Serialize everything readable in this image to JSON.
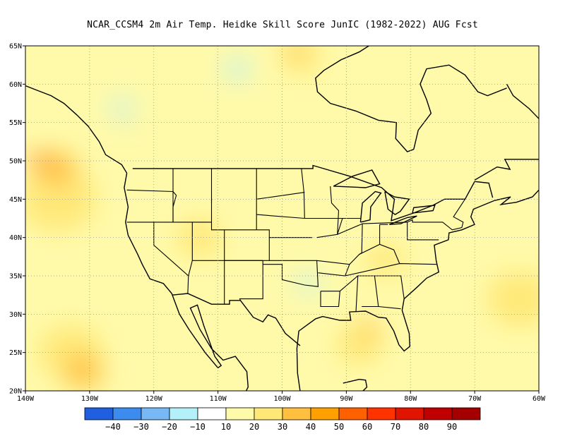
{
  "title": "NCAR_CCSM4  2m Air Temp. Heidke Skill Score JunIC (1982-2022) AUG Fcst",
  "map": {
    "lon_range": [
      -140,
      -60
    ],
    "lat_range": [
      20,
      65
    ],
    "lat_ticks": [
      "65N",
      "60N",
      "55N",
      "50N",
      "45N",
      "40N",
      "35N",
      "30N",
      "25N",
      "20N"
    ],
    "lat_values": [
      65,
      60,
      55,
      50,
      45,
      40,
      35,
      30,
      25,
      20
    ],
    "lon_ticks": [
      "140W",
      "130W",
      "120W",
      "110W",
      "100W",
      "90W",
      "80W",
      "70W",
      "60W"
    ],
    "lon_values": [
      -140,
      -130,
      -120,
      -110,
      -100,
      -90,
      -80,
      -70,
      -60
    ]
  },
  "colorbar": {
    "colors": [
      "#1f5fe0",
      "#3c8cf0",
      "#78b9f5",
      "#b4f0fa",
      "#ffffff",
      "#fffaaa",
      "#ffe878",
      "#ffc040",
      "#ffa000",
      "#ff6000",
      "#ff3200",
      "#e11400",
      "#c00000",
      "#a50000"
    ],
    "labels": [
      "−40",
      "−30",
      "−20",
      "−10",
      "10",
      "20",
      "30",
      "40",
      "50",
      "60",
      "70",
      "80",
      "90"
    ]
  },
  "fields": [
    {
      "color": "#ffe878",
      "lon": -135,
      "lat": 45,
      "r": 6
    },
    {
      "color": "#ffc040",
      "lon": -135,
      "lat": 49,
      "r": 3
    },
    {
      "color": "#ff6000",
      "lon": -138,
      "lat": 50,
      "r": 1.3
    },
    {
      "color": "#ffe878",
      "lon": -133,
      "lat": 25,
      "r": 5
    },
    {
      "color": "#ffc040",
      "lon": -131,
      "lat": 22.5,
      "r": 3
    },
    {
      "color": "#ffe878",
      "lon": -88,
      "lat": 26,
      "r": 3.5
    },
    {
      "color": "#ffc040",
      "lon": -86.5,
      "lat": 28,
      "r": 1.6
    },
    {
      "color": "#ffe878",
      "lon": -97,
      "lat": 63.5,
      "r": 3
    },
    {
      "color": "#ffc040",
      "lon": -98,
      "lat": 64.5,
      "r": 1.5
    },
    {
      "color": "#ffe878",
      "lon": -63,
      "lat": 32,
      "r": 5
    },
    {
      "color": "#ffe878",
      "lon": -113,
      "lat": 40,
      "r": 3.5
    },
    {
      "color": "#ffe878",
      "lon": -84,
      "lat": 37,
      "r": 3
    },
    {
      "color": "#b4f0fa",
      "lon": -125,
      "lat": 57,
      "r": 1.5
    },
    {
      "color": "#b4f0fa",
      "lon": -107,
      "lat": 62,
      "r": 1.8
    },
    {
      "color": "#b4f0fa",
      "lon": -96,
      "lat": 34,
      "r": 1.5
    },
    {
      "color": "#78b9f5",
      "lon": -124.5,
      "lat": 55.2,
      "r": 0.5
    }
  ]
}
